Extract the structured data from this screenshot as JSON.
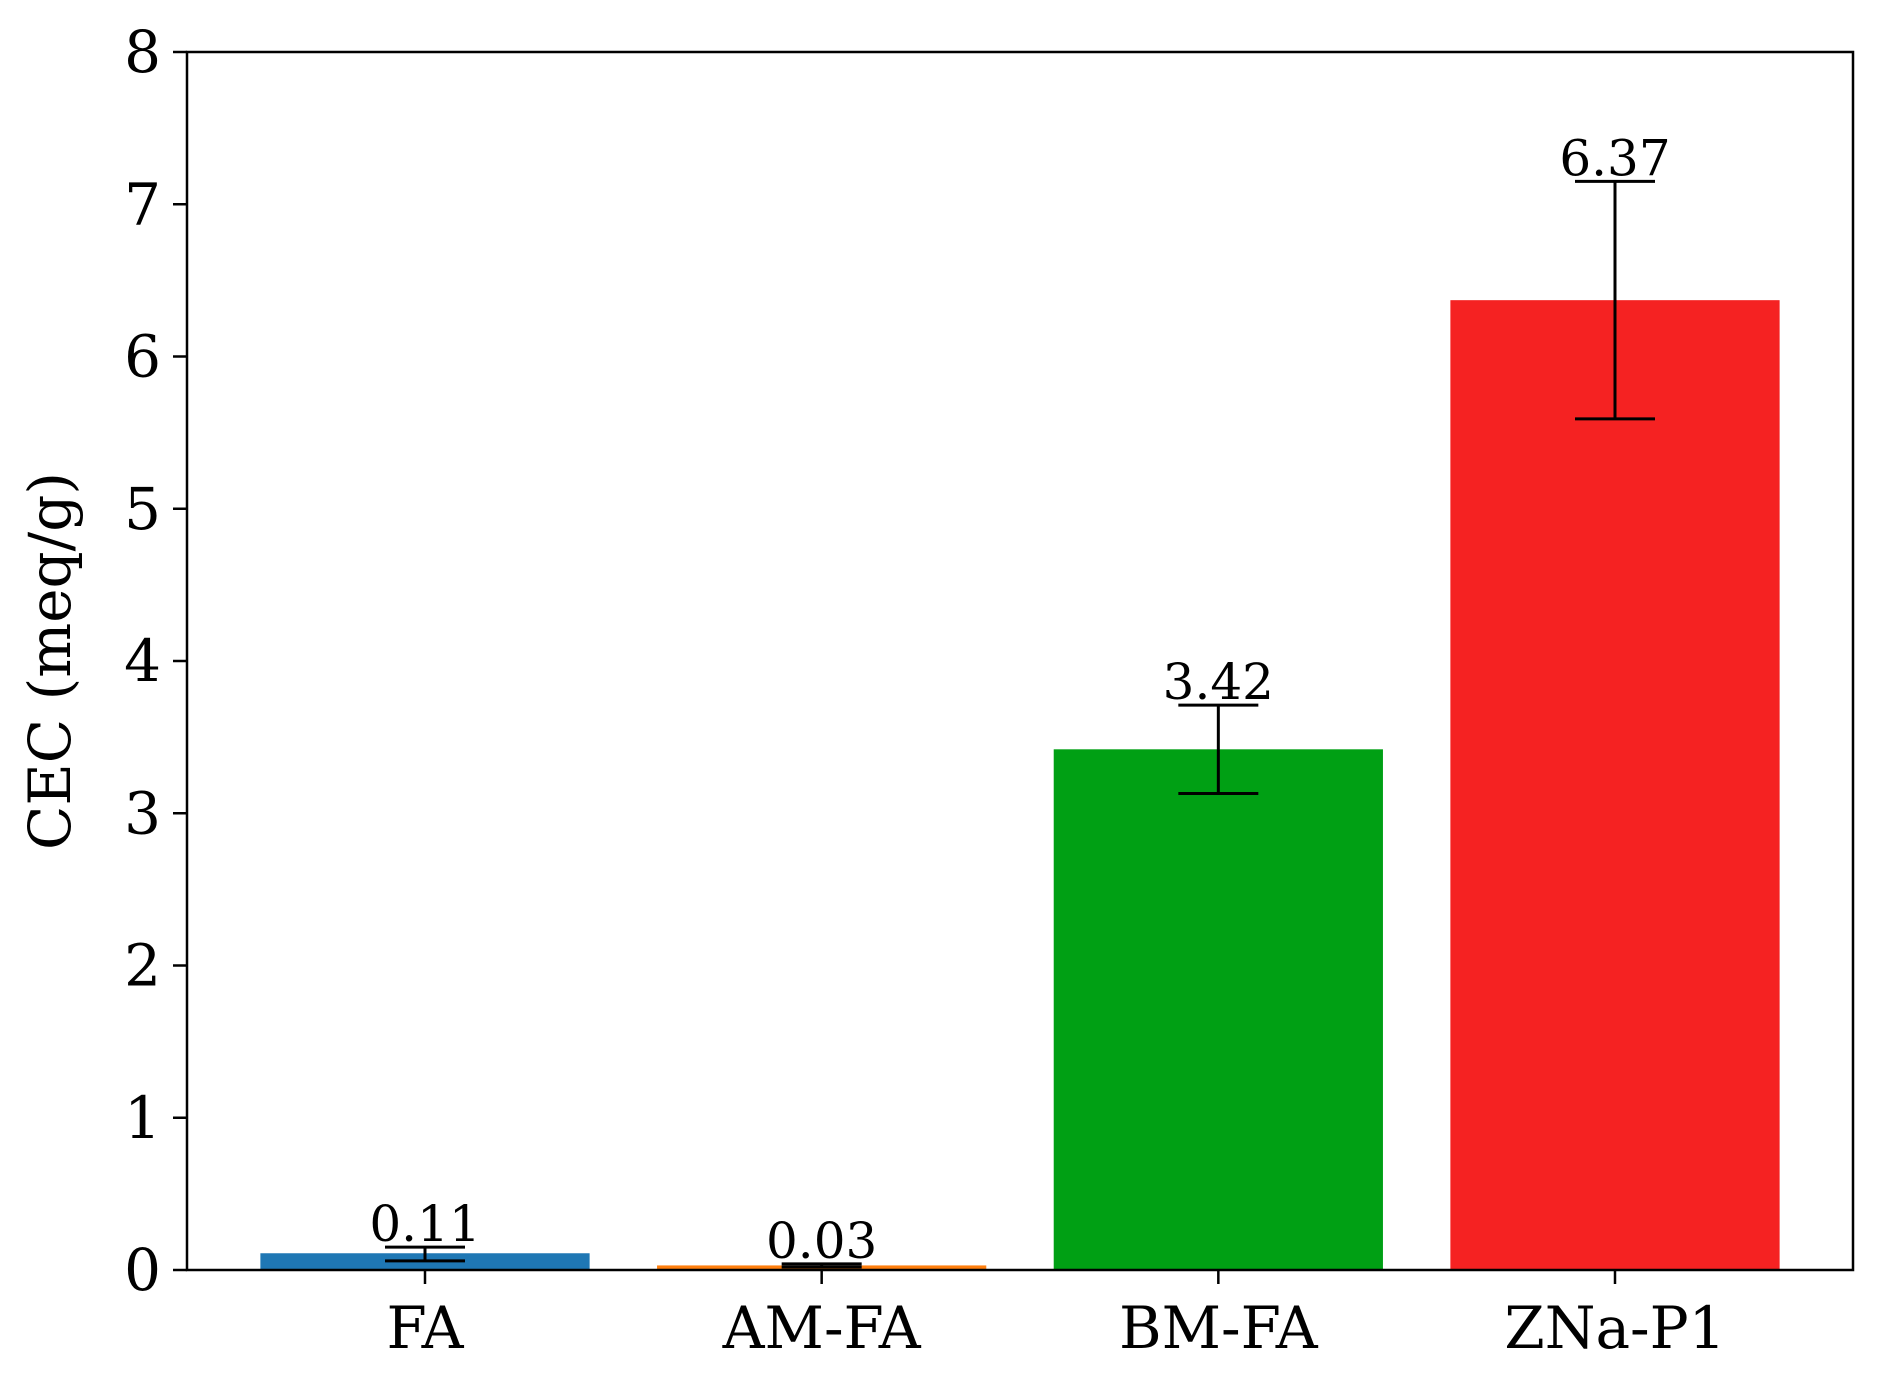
{
  "chart_data": {
    "type": "bar",
    "title": "",
    "xlabel": "",
    "ylabel": "CEC (meq/g)",
    "ylim": [
      0,
      8
    ],
    "yticks": [
      "0",
      "1",
      "2",
      "3",
      "4",
      "5",
      "6",
      "7",
      "8"
    ],
    "categories": [
      "FA",
      "AM-FA",
      "BM-FA",
      "ZNa-P1"
    ],
    "values": [
      0.11,
      0.03,
      3.42,
      6.37
    ],
    "error_low": [
      0.06,
      0.02,
      3.13,
      5.59
    ],
    "error_high": [
      0.15,
      0.04,
      3.71,
      7.15
    ],
    "value_labels": [
      "0.11",
      "0.03",
      "3.42",
      "6.37"
    ],
    "colors": [
      "#1f77b4",
      "#ff7f0e",
      "#00a014",
      "#f52222"
    ],
    "grid": false
  }
}
